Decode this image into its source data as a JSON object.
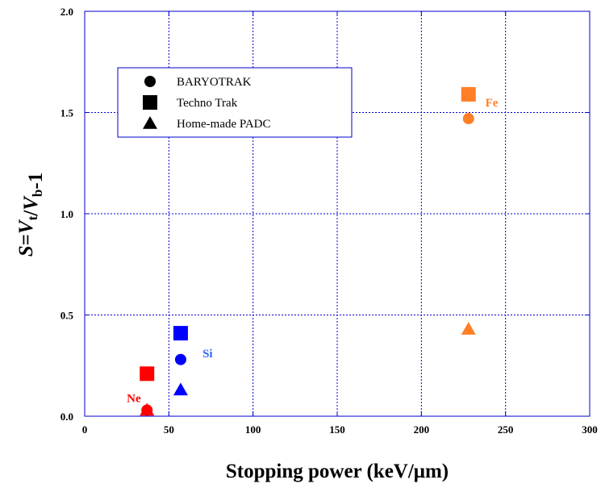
{
  "chart_data": {
    "type": "scatter",
    "xlabel": "Stopping power (keV/μm)",
    "ylabel": {
      "parts": [
        {
          "key": "s",
          "text": "S",
          "italic": true
        },
        {
          "key": "eq",
          "text": "=",
          "italic": false
        },
        {
          "key": "vt",
          "text": "V",
          "italic": true
        },
        {
          "key": "sub_t",
          "text": "t",
          "sub": true
        },
        {
          "key": "slash",
          "text": "/",
          "italic": false
        },
        {
          "key": "vb",
          "text": "V",
          "italic": true
        },
        {
          "key": "sub_b",
          "text": "b",
          "sub": true
        },
        {
          "key": "minus1",
          "text": "-1",
          "italic": false
        }
      ]
    },
    "xlim": [
      0,
      300
    ],
    "ylim": [
      0,
      2.0
    ],
    "xticks": [
      "0",
      "50",
      "100",
      "150",
      "200",
      "250",
      "300"
    ],
    "yticks": [
      "0.0",
      "0.5",
      "1.0",
      "1.5",
      "2.0"
    ],
    "grid": true,
    "grid_color": "#0000cc",
    "legend_position": "top-left",
    "series": [
      {
        "name": "BARYOTRAK",
        "marker": "circle",
        "points": [
          {
            "x": 37,
            "y": 0.03,
            "color": "#ff0000"
          },
          {
            "x": 57,
            "y": 0.28,
            "color": "#0000ff"
          },
          {
            "x": 228,
            "y": 1.47,
            "color": "#ff7f27"
          }
        ]
      },
      {
        "name": "Techno Trak",
        "marker": "square",
        "points": [
          {
            "x": 37,
            "y": 0.21,
            "color": "#ff0000"
          },
          {
            "x": 57,
            "y": 0.41,
            "color": "#0000ff"
          },
          {
            "x": 228,
            "y": 1.59,
            "color": "#ff7f27"
          }
        ]
      },
      {
        "name": "Home-made PADC",
        "marker": "triangle",
        "points": [
          {
            "x": 37,
            "y": 0.03,
            "color": "#ff0000"
          },
          {
            "x": 57,
            "y": 0.13,
            "color": "#0000ff"
          },
          {
            "x": 228,
            "y": 0.43,
            "color": "#ff7f27"
          }
        ]
      }
    ],
    "annotations": [
      {
        "text": "Ne",
        "x": 25,
        "y": 0.09,
        "color": "#ff0000"
      },
      {
        "text": "Si",
        "x": 70,
        "y": 0.31,
        "color": "#3366ff"
      },
      {
        "text": "Fe",
        "x": 238,
        "y": 1.55,
        "color": "#ff7f27"
      }
    ]
  }
}
